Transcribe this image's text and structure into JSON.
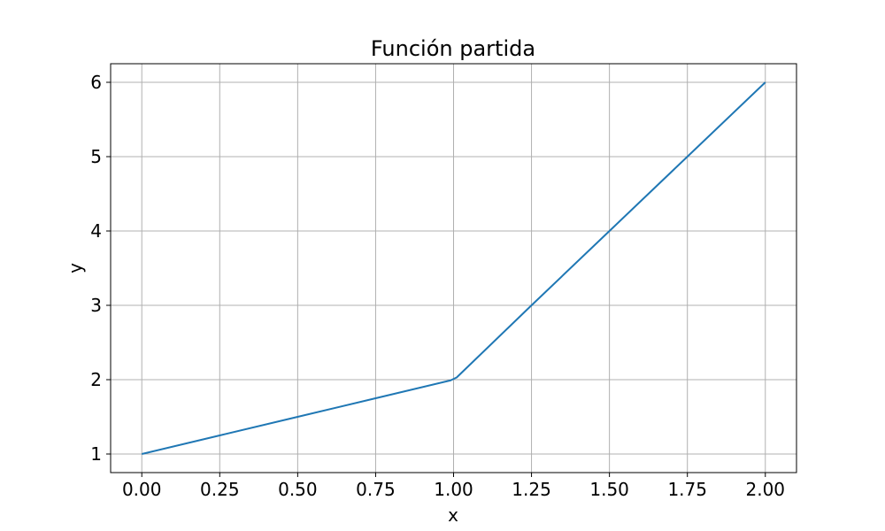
{
  "chart_data": {
    "type": "line",
    "title": "Función partida",
    "xlabel": "x",
    "ylabel": "y",
    "xlim": [
      -0.1,
      2.1
    ],
    "ylim": [
      0.75,
      6.25
    ],
    "xticks": [
      0.0,
      0.25,
      0.5,
      0.75,
      1.0,
      1.25,
      1.5,
      1.75,
      2.0
    ],
    "xtick_labels": [
      "0.00",
      "0.25",
      "0.50",
      "0.75",
      "1.00",
      "1.25",
      "1.50",
      "1.75",
      "2.00"
    ],
    "yticks": [
      1,
      2,
      3,
      4,
      5,
      6
    ],
    "ytick_labels": [
      "1",
      "2",
      "3",
      "4",
      "5",
      "6"
    ],
    "grid": true,
    "series": [
      {
        "color": "#1f77b4",
        "x": [
          0.0,
          0.25,
          0.5,
          0.75,
          0.99,
          1.01,
          1.25,
          1.5,
          1.75,
          2.0
        ],
        "y": [
          1.0,
          1.25,
          1.5,
          1.75,
          1.99,
          2.03,
          3.0,
          4.0,
          5.0,
          6.0
        ]
      }
    ]
  },
  "colors": {
    "line": "#1f77b4",
    "grid": "#b0b0b0",
    "axes": "#000000"
  }
}
